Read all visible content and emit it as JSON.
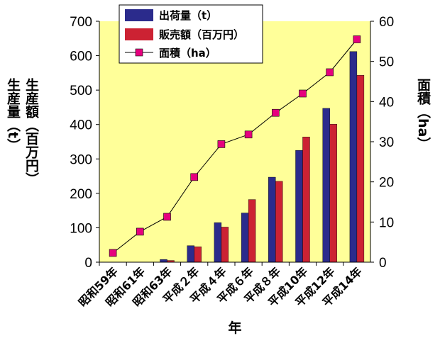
{
  "chart_data": {
    "type": "bar",
    "categories": [
      "昭和59年",
      "昭和61年",
      "昭和63年",
      "平成２年",
      "平成４年",
      "平成６年",
      "平成８年",
      "平成10年",
      "平成12年",
      "平成14年"
    ],
    "series": [
      {
        "name": "出荷量（t）",
        "type": "bar",
        "axis": "left",
        "color": "#2b2b8c",
        "values": [
          0,
          0,
          8,
          48,
          115,
          143,
          247,
          325,
          447,
          612
        ]
      },
      {
        "name": "販売額（百万円）",
        "type": "bar",
        "axis": "left",
        "color": "#cc2233",
        "values": [
          0,
          0,
          5,
          45,
          102,
          182,
          235,
          364,
          401,
          543
        ]
      },
      {
        "name": "面積（ha）",
        "type": "line",
        "axis": "right",
        "color": "#e6007e",
        "values": [
          2.3,
          7.6,
          11.3,
          21.2,
          29.4,
          31.8,
          37.2,
          42.0,
          47.3,
          55.5
        ]
      }
    ],
    "xlabel": "年",
    "ylabel_left_1": "生産量（t）",
    "ylabel_left_2": "生産額（百万円）",
    "ylabel_right": "面積（ha）",
    "ylim_left": [
      0,
      700
    ],
    "yticks_left": [
      "0",
      "100",
      "200",
      "300",
      "400",
      "500",
      "600",
      "700"
    ],
    "ylim_right": [
      0,
      60
    ],
    "yticks_right": [
      "0",
      "10",
      "20",
      "30",
      "40",
      "50",
      "60"
    ],
    "plot_background": "#ffff99",
    "legend_position": "top-center",
    "grid": false
  }
}
